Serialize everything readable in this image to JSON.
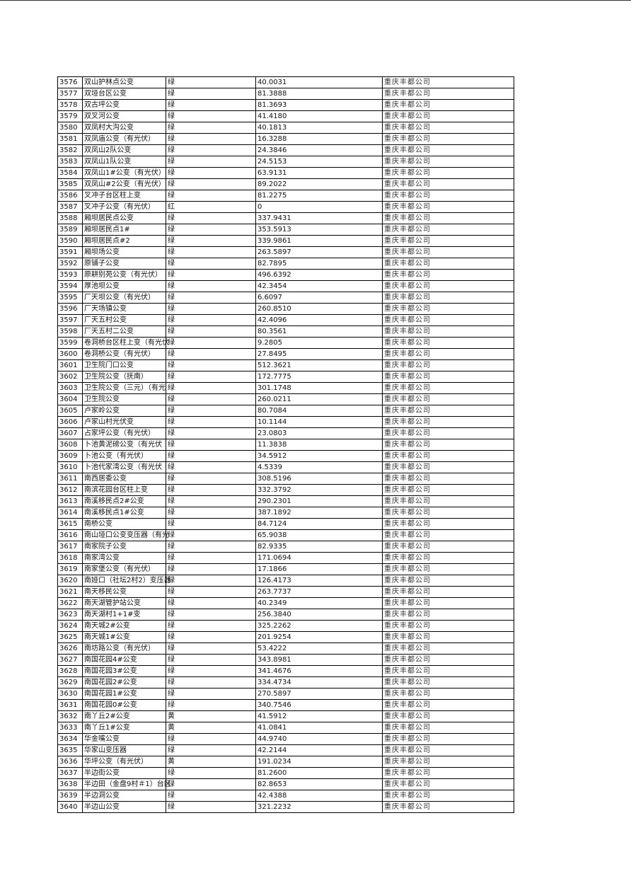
{
  "company": "重庆丰都公司",
  "rows": [
    [
      "3576",
      "双山护林点公变",
      "绿",
      "40.0031"
    ],
    [
      "3577",
      "双垭台区公变",
      "绿",
      "81.3888"
    ],
    [
      "3578",
      "双古坪公变",
      "绿",
      "81.3693"
    ],
    [
      "3579",
      "双叉河公变",
      "绿",
      "41.4180"
    ],
    [
      "3580",
      "双凤村大沟公变",
      "绿",
      "40.1813"
    ],
    [
      "3581",
      "双凤庙公变（有光伏）",
      "绿",
      "16.3288"
    ],
    [
      "3582",
      "双凤山2队公变",
      "绿",
      "24.3846"
    ],
    [
      "3583",
      "双凤山1队公变",
      "绿",
      "24.5153"
    ],
    [
      "3584",
      "双凤山1#公变（有光伏）",
      "绿",
      "63.9131"
    ],
    [
      "3585",
      "双凤山#2公变（有光伏）",
      "绿",
      "89.2022"
    ],
    [
      "3586",
      "叉冲子台区柱上变",
      "绿",
      "81.2275"
    ],
    [
      "3587",
      "叉冲子公变（有光伏）",
      "红",
      "0"
    ],
    [
      "3588",
      "厢坝居民点公变",
      "绿",
      "337.9431"
    ],
    [
      "3589",
      "厢坝居民点1#",
      "绿",
      "353.5913"
    ],
    [
      "3590",
      "厢坝居民点#2",
      "绿",
      "339.9861"
    ],
    [
      "3591",
      "厢坝场公变",
      "绿",
      "263.5897"
    ],
    [
      "3592",
      "原铺子公变",
      "绿",
      "82.7895"
    ],
    [
      "3593",
      "原耕别苑公变（有光伏）",
      "绿",
      "496.6392"
    ],
    [
      "3594",
      "厚池坝公变",
      "绿",
      "42.3454"
    ],
    [
      "3595",
      "厂天坝公变（有光伏）",
      "绿",
      "6.6097"
    ],
    [
      "3596",
      "厂天场镇公变",
      "绿",
      "260.8510"
    ],
    [
      "3597",
      "厂天五村公变",
      "绿",
      "42.4096"
    ],
    [
      "3598",
      "厂天五村二公变",
      "绿",
      "80.3561"
    ],
    [
      "3599",
      "卷洞桥台区柱上变（有光伏",
      "绿",
      "9.2805"
    ],
    [
      "3600",
      "卷洞桥公变（有光伏）",
      "绿",
      "27.8495"
    ],
    [
      "3601",
      "卫生院门口公变",
      "绿",
      "512.3621"
    ],
    [
      "3602",
      "卫生院公变（抚南）",
      "绿",
      "172.7775"
    ],
    [
      "3603",
      "卫生院公变（三元）（有光",
      "绿",
      "301.1748"
    ],
    [
      "3604",
      "卫生院公变",
      "绿",
      "260.0211"
    ],
    [
      "3605",
      "卢家岭公变",
      "绿",
      "80.7084"
    ],
    [
      "3606",
      "卢家山村光伏变",
      "绿",
      "10.1144"
    ],
    [
      "3607",
      "占家坪公变（有光伏）",
      "绿",
      "23.0803"
    ],
    [
      "3608",
      "卜池黄泥磅公变（有光伏",
      "绿",
      "11.3838"
    ],
    [
      "3609",
      "卜池公变（有光伏）",
      "绿",
      "34.5912"
    ],
    [
      "3610",
      "卜池代家湾公变（有光伏",
      "绿",
      "4.5339"
    ],
    [
      "3611",
      "南西居委公变",
      "绿",
      "308.5196"
    ],
    [
      "3612",
      "南滨花园台区柱上变",
      "绿",
      "332.3792"
    ],
    [
      "3613",
      "南溪移民点2#公变",
      "绿",
      "290.2301"
    ],
    [
      "3614",
      "南溪移民点1#公变",
      "绿",
      "387.1892"
    ],
    [
      "3615",
      "南桥公变",
      "绿",
      "84.7124"
    ],
    [
      "3616",
      "南山垭口公变变压器（有光",
      "绿",
      "65.9038"
    ],
    [
      "3617",
      "南家院子公变",
      "绿",
      "82.9335"
    ],
    [
      "3618",
      "南家湾公变",
      "绿",
      "171.0694"
    ],
    [
      "3619",
      "南家堡公变（有光伏）",
      "绿",
      "17.1866"
    ],
    [
      "3620",
      "南娅口（社坛2村2）变压器",
      "绿",
      "126.4173"
    ],
    [
      "3621",
      "南天移民公变",
      "绿",
      "263.7737"
    ],
    [
      "3622",
      "南天湖管护站公变",
      "绿",
      "40.2349"
    ],
    [
      "3623",
      "南天湖村1+1#变",
      "绿",
      "256.3840"
    ],
    [
      "3624",
      "南天城2#公变",
      "绿",
      "325.2262"
    ],
    [
      "3625",
      "南天城1#公变",
      "绿",
      "201.9254"
    ],
    [
      "3626",
      "南坊路公变（有光伏）",
      "绿",
      "53.4222"
    ],
    [
      "3627",
      "南国花园4#公变",
      "绿",
      "343.8981"
    ],
    [
      "3628",
      "南国花园3#公变",
      "绿",
      "341.4676"
    ],
    [
      "3629",
      "南国花园2#公变",
      "绿",
      "334.4734"
    ],
    [
      "3630",
      "南国花园1#公变",
      "绿",
      "270.5897"
    ],
    [
      "3631",
      "南国花园0#公变",
      "绿",
      "340.7546"
    ],
    [
      "3632",
      "南丫丘2#公变",
      "黄",
      "41.5912"
    ],
    [
      "3633",
      "南丫丘1#公变",
      "黄",
      "41.0841"
    ],
    [
      "3634",
      "华金嘴公变",
      "绿",
      "44.9740"
    ],
    [
      "3635",
      "华家山变压器",
      "绿",
      "42.2144"
    ],
    [
      "3636",
      "华坪公变（有光伏）",
      "黄",
      "191.0234"
    ],
    [
      "3637",
      "半边街公变",
      "绿",
      "81.2600"
    ],
    [
      "3638",
      "半边田（金盘9村＃1）台区",
      "绿",
      "82.8653"
    ],
    [
      "3639",
      "半边洞公变",
      "绿",
      "42.4388"
    ],
    [
      "3640",
      "半边山公变",
      "绿",
      "321.2232"
    ]
  ]
}
